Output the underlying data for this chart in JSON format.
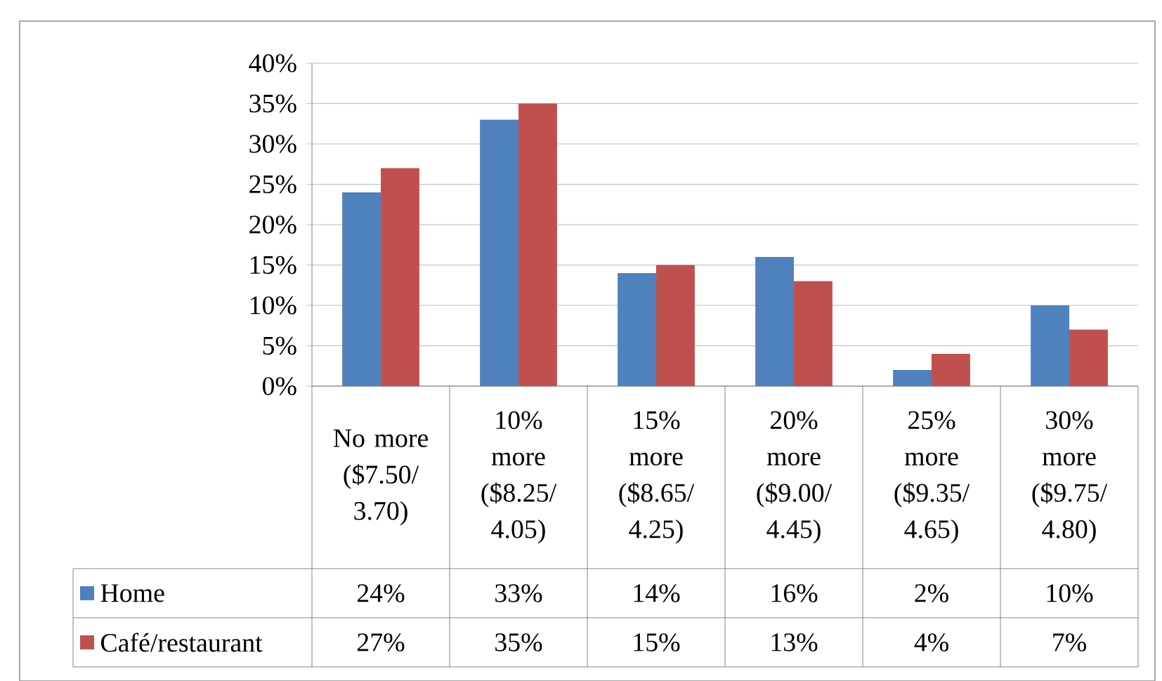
{
  "chart_data": {
    "type": "bar",
    "categories": [
      "No more ($7.50/ 3.70)",
      "10% more ($8.25/ 4.05)",
      "15% more ($8.65/ 4.25)",
      "20% more ($9.00/ 4.45)",
      "25% more ($9.35/ 4.65)",
      "30% more ($9.75/ 4.80)"
    ],
    "series": [
      {
        "name": "Home",
        "color": "#4f81bd",
        "values": [
          24,
          33,
          14,
          16,
          2,
          10
        ],
        "value_labels": [
          "24%",
          "33%",
          "14%",
          "16%",
          "2%",
          "10%"
        ]
      },
      {
        "name": "Café/restaurant",
        "color": "#c0504d",
        "values": [
          27,
          35,
          15,
          13,
          4,
          7
        ],
        "value_labels": [
          "27%",
          "35%",
          "15%",
          "13%",
          "4%",
          "7%"
        ]
      }
    ],
    "ylim": [
      0,
      40
    ],
    "yticks": [
      {
        "value": 0,
        "label": "0%"
      },
      {
        "value": 5,
        "label": "5%"
      },
      {
        "value": 10,
        "label": "10%"
      },
      {
        "value": 15,
        "label": "15%"
      },
      {
        "value": 20,
        "label": "20%"
      },
      {
        "value": 25,
        "label": "25%"
      },
      {
        "value": 30,
        "label": "30%"
      },
      {
        "value": 35,
        "label": "35%"
      },
      {
        "value": 40,
        "label": "40%"
      }
    ],
    "grid": "y",
    "legend": "bottom left"
  }
}
